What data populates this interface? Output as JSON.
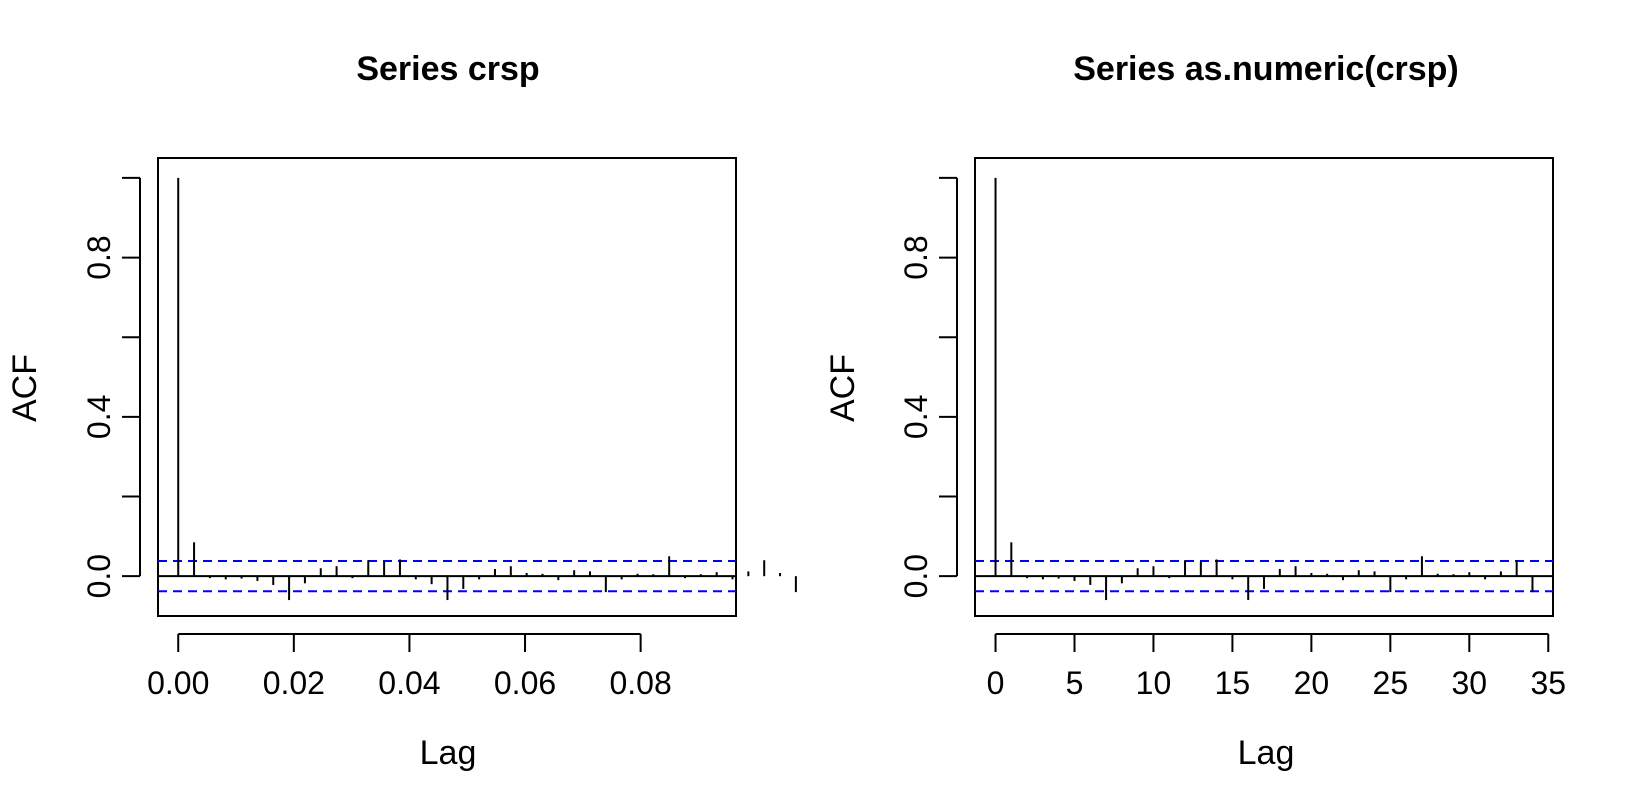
{
  "chart_data": [
    {
      "type": "bar",
      "title": "Series  crsp",
      "xlabel": "Lag",
      "ylabel": "ACF",
      "xlim": [
        -0.0035,
        0.0965
      ],
      "ylim": [
        -0.1,
        1.05
      ],
      "x_ticks": [
        "0.00",
        "0.02",
        "0.04",
        "0.06",
        "0.08"
      ],
      "x_tick_values": [
        0,
        0.02,
        0.04,
        0.06,
        0.08
      ],
      "y_ticks": [
        "0.0",
        "0.4",
        "0.8"
      ],
      "y_tick_values": [
        0.0,
        0.4,
        0.8
      ],
      "y_minor_tick_values": [
        0.2,
        0.6,
        1.0
      ],
      "lag_step": 0.00274,
      "acf": [
        1.0,
        0.085,
        -0.005,
        -0.008,
        -0.006,
        -0.012,
        -0.022,
        -0.06,
        -0.018,
        0.02,
        0.025,
        -0.005,
        0.04,
        0.036,
        0.042,
        -0.008,
        -0.02,
        -0.06,
        -0.032,
        -0.008,
        0.018,
        0.025,
        0.008,
        0.006,
        -0.01,
        0.015,
        0.012,
        -0.04,
        -0.008,
        0.006,
        0.005,
        0.05,
        -0.005,
        0.005,
        0.01,
        -0.008,
        0.012,
        0.04,
        0.008,
        -0.04
      ],
      "ci": 0.038,
      "grid": false,
      "legend": "none"
    },
    {
      "type": "bar",
      "title": "Series  as.numeric(crsp)",
      "xlabel": "Lag",
      "ylabel": "ACF",
      "xlim": [
        -1.3,
        35.3
      ],
      "ylim": [
        -0.1,
        1.05
      ],
      "x_ticks": [
        "0",
        "5",
        "10",
        "15",
        "20",
        "25",
        "30",
        "35"
      ],
      "x_tick_values": [
        0,
        5,
        10,
        15,
        20,
        25,
        30,
        35
      ],
      "y_ticks": [
        "0.0",
        "0.4",
        "0.8"
      ],
      "y_tick_values": [
        0.0,
        0.4,
        0.8
      ],
      "y_minor_tick_values": [
        0.2,
        0.6,
        1.0
      ],
      "lag_step": 1,
      "acf": [
        1.0,
        0.085,
        -0.005,
        -0.008,
        -0.006,
        -0.012,
        -0.022,
        -0.06,
        -0.018,
        0.02,
        0.025,
        -0.005,
        0.04,
        0.036,
        0.042,
        -0.008,
        -0.06,
        -0.032,
        0.018,
        0.025,
        0.008,
        0.006,
        -0.01,
        0.015,
        0.012,
        -0.04,
        -0.008,
        0.05,
        0.006,
        0.005,
        0.01,
        -0.008,
        0.012,
        0.04,
        -0.04
      ],
      "ci": 0.038,
      "grid": false,
      "legend": "none"
    }
  ],
  "colors": {
    "axis": "#000000",
    "bars": "#000000",
    "ci_lines": "#0000ff"
  }
}
